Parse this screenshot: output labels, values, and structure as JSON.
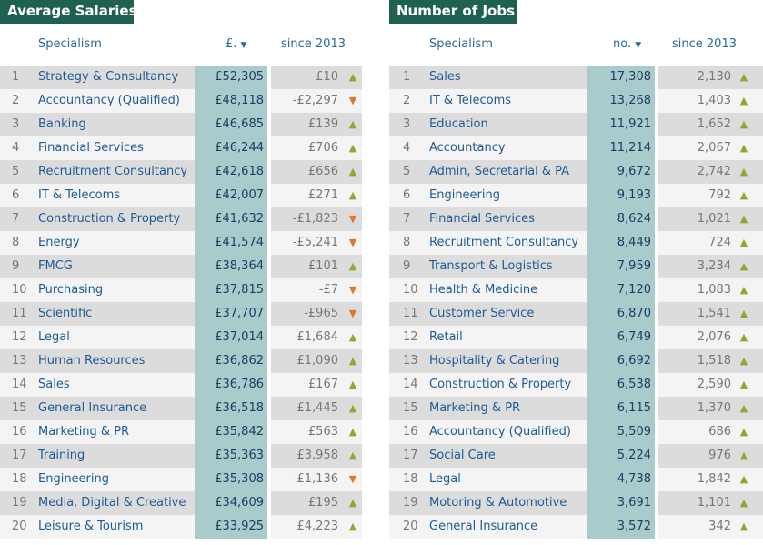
{
  "salaries": {
    "title": "Average Salaries",
    "headers": {
      "specialism": "Specialism",
      "value": "£.",
      "sort_icon": "▼",
      "since": "since 2013"
    },
    "rows": [
      {
        "rank": "1",
        "name": "Strategy & Consultancy",
        "value": "£52,305",
        "change": "£10",
        "dir": "up"
      },
      {
        "rank": "2",
        "name": "Accountancy (Qualified)",
        "value": "£48,118",
        "change": "-£2,297",
        "dir": "down"
      },
      {
        "rank": "3",
        "name": "Banking",
        "value": "£46,685",
        "change": "£139",
        "dir": "up"
      },
      {
        "rank": "4",
        "name": "Financial Services",
        "value": "£46,244",
        "change": "£706",
        "dir": "up"
      },
      {
        "rank": "5",
        "name": "Recruitment Consultancy",
        "value": "£42,618",
        "change": "£656",
        "dir": "up"
      },
      {
        "rank": "6",
        "name": "IT & Telecoms",
        "value": "£42,007",
        "change": "£271",
        "dir": "up"
      },
      {
        "rank": "7",
        "name": "Construction & Property",
        "value": "£41,632",
        "change": "-£1,823",
        "dir": "down"
      },
      {
        "rank": "8",
        "name": "Energy",
        "value": "£41,574",
        "change": "-£5,241",
        "dir": "down"
      },
      {
        "rank": "9",
        "name": "FMCG",
        "value": "£38,364",
        "change": "£101",
        "dir": "up"
      },
      {
        "rank": "10",
        "name": "Purchasing",
        "value": "£37,815",
        "change": "-£7",
        "dir": "down"
      },
      {
        "rank": "11",
        "name": "Scientific",
        "value": "£37,707",
        "change": "-£965",
        "dir": "down"
      },
      {
        "rank": "12",
        "name": "Legal",
        "value": "£37,014",
        "change": "£1,684",
        "dir": "up"
      },
      {
        "rank": "13",
        "name": "Human Resources",
        "value": "£36,862",
        "change": "£1,090",
        "dir": "up"
      },
      {
        "rank": "14",
        "name": "Sales",
        "value": "£36,786",
        "change": "£167",
        "dir": "up"
      },
      {
        "rank": "15",
        "name": "General Insurance",
        "value": "£36,518",
        "change": "£1,445",
        "dir": "up"
      },
      {
        "rank": "16",
        "name": "Marketing & PR",
        "value": "£35,842",
        "change": "£563",
        "dir": "up"
      },
      {
        "rank": "17",
        "name": "Training",
        "value": "£35,363",
        "change": "£3,958",
        "dir": "up"
      },
      {
        "rank": "18",
        "name": "Engineering",
        "value": "£35,308",
        "change": "-£1,136",
        "dir": "down"
      },
      {
        "rank": "19",
        "name": "Media, Digital & Creative",
        "value": "£34,609",
        "change": "£195",
        "dir": "up"
      },
      {
        "rank": "20",
        "name": "Leisure & Tourism",
        "value": "£33,925",
        "change": "£4,223",
        "dir": "up"
      }
    ]
  },
  "jobs": {
    "title": "Number of Jobs",
    "headers": {
      "specialism": "Specialism",
      "value": "no.",
      "sort_icon": "▼",
      "since": "since 2013"
    },
    "rows": [
      {
        "rank": "1",
        "name": "Sales",
        "value": "17,308",
        "change": "2,130",
        "dir": "up"
      },
      {
        "rank": "2",
        "name": "IT & Telecoms",
        "value": "13,268",
        "change": "1,403",
        "dir": "up"
      },
      {
        "rank": "3",
        "name": "Education",
        "value": "11,921",
        "change": "1,652",
        "dir": "up"
      },
      {
        "rank": "4",
        "name": "Accountancy",
        "value": "11,214",
        "change": "2,067",
        "dir": "up"
      },
      {
        "rank": "5",
        "name": "Admin, Secretarial & PA",
        "value": "9,672",
        "change": "2,742",
        "dir": "up"
      },
      {
        "rank": "6",
        "name": "Engineering",
        "value": "9,193",
        "change": "792",
        "dir": "up"
      },
      {
        "rank": "7",
        "name": "Financial Services",
        "value": "8,624",
        "change": "1,021",
        "dir": "up"
      },
      {
        "rank": "8",
        "name": "Recruitment Consultancy",
        "value": "8,449",
        "change": "724",
        "dir": "up"
      },
      {
        "rank": "9",
        "name": "Transport & Logistics",
        "value": "7,959",
        "change": "3,234",
        "dir": "up"
      },
      {
        "rank": "10",
        "name": "Health & Medicine",
        "value": "7,120",
        "change": "1,083",
        "dir": "up"
      },
      {
        "rank": "11",
        "name": "Customer Service",
        "value": "6,870",
        "change": "1,541",
        "dir": "up"
      },
      {
        "rank": "12",
        "name": "Retail",
        "value": "6,749",
        "change": "2,076",
        "dir": "up"
      },
      {
        "rank": "13",
        "name": "Hospitality & Catering",
        "value": "6,692",
        "change": "1,518",
        "dir": "up"
      },
      {
        "rank": "14",
        "name": "Construction & Property",
        "value": "6,538",
        "change": "2,590",
        "dir": "up"
      },
      {
        "rank": "15",
        "name": "Marketing & PR",
        "value": "6,115",
        "change": "1,370",
        "dir": "up"
      },
      {
        "rank": "16",
        "name": "Accountancy (Qualified)",
        "value": "5,509",
        "change": "686",
        "dir": "up"
      },
      {
        "rank": "17",
        "name": "Social Care",
        "value": "5,224",
        "change": "976",
        "dir": "up"
      },
      {
        "rank": "18",
        "name": "Legal",
        "value": "4,738",
        "change": "1,842",
        "dir": "up"
      },
      {
        "rank": "19",
        "name": "Motoring & Automotive",
        "value": "3,691",
        "change": "1,101",
        "dir": "up"
      },
      {
        "rank": "20",
        "name": "General Insurance",
        "value": "3,572",
        "change": "342",
        "dir": "up"
      }
    ]
  },
  "icons": {
    "up": "▲",
    "down": "▼",
    "up_color": "#8fa830",
    "down_color": "#e07828"
  },
  "colors": {
    "title_bg": "#1f6151",
    "value_column_bg": "#a9cbcb",
    "link_text": "#1f5a95"
  }
}
